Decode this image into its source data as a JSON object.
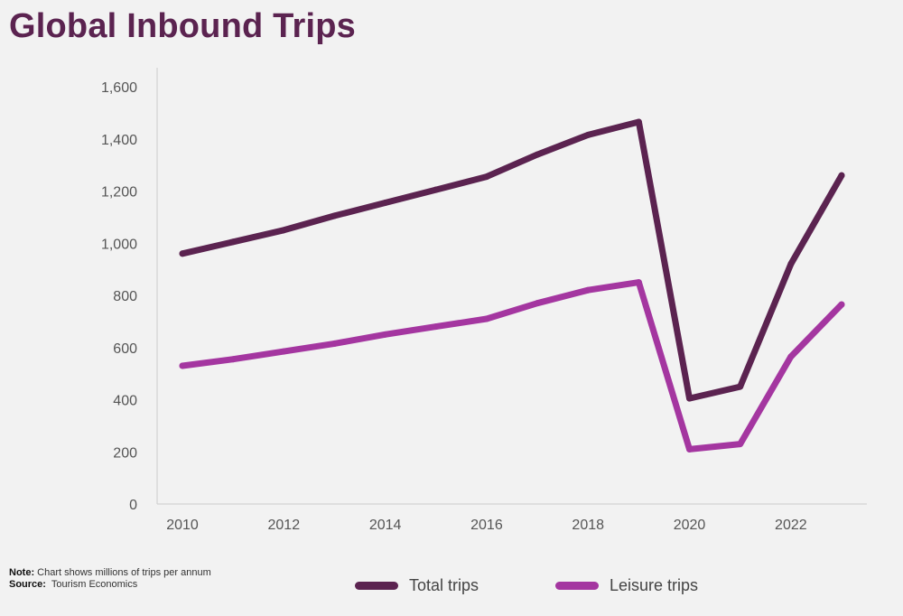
{
  "title": "Global Inbound Trips",
  "notes": {
    "note_label": "Note:",
    "note_text": "Chart shows millions of trips per annum",
    "source_label": "Source:",
    "source_text": "Tourism Economics"
  },
  "colors": {
    "total": "#5b2350",
    "leisure": "#a436a0",
    "axis": "#cccccc"
  },
  "chart_data": {
    "type": "line",
    "title": "Global Inbound Trips",
    "xlabel": "",
    "ylabel": "",
    "x": [
      2010,
      2011,
      2012,
      2013,
      2014,
      2015,
      2016,
      2017,
      2018,
      2019,
      2020,
      2021,
      2022,
      2023
    ],
    "x_tick_labels": [
      "2010",
      "2012",
      "2014",
      "2016",
      "2018",
      "2020",
      "2022"
    ],
    "y_tick_labels": [
      "0",
      "200",
      "400",
      "600",
      "800",
      "1,000",
      "1,200",
      "1,400",
      "1,600"
    ],
    "ylim": [
      0,
      1600
    ],
    "xlim": [
      2010,
      2023
    ],
    "grid": false,
    "legend_position": "bottom",
    "series": [
      {
        "name": "Total trips",
        "values": [
          960,
          1005,
          1050,
          1105,
          1155,
          1205,
          1255,
          1340,
          1415,
          1465,
          405,
          450,
          920,
          1260
        ]
      },
      {
        "name": "Leisure trips",
        "values": [
          530,
          555,
          585,
          615,
          650,
          680,
          710,
          770,
          820,
          850,
          210,
          230,
          565,
          765
        ]
      }
    ]
  }
}
